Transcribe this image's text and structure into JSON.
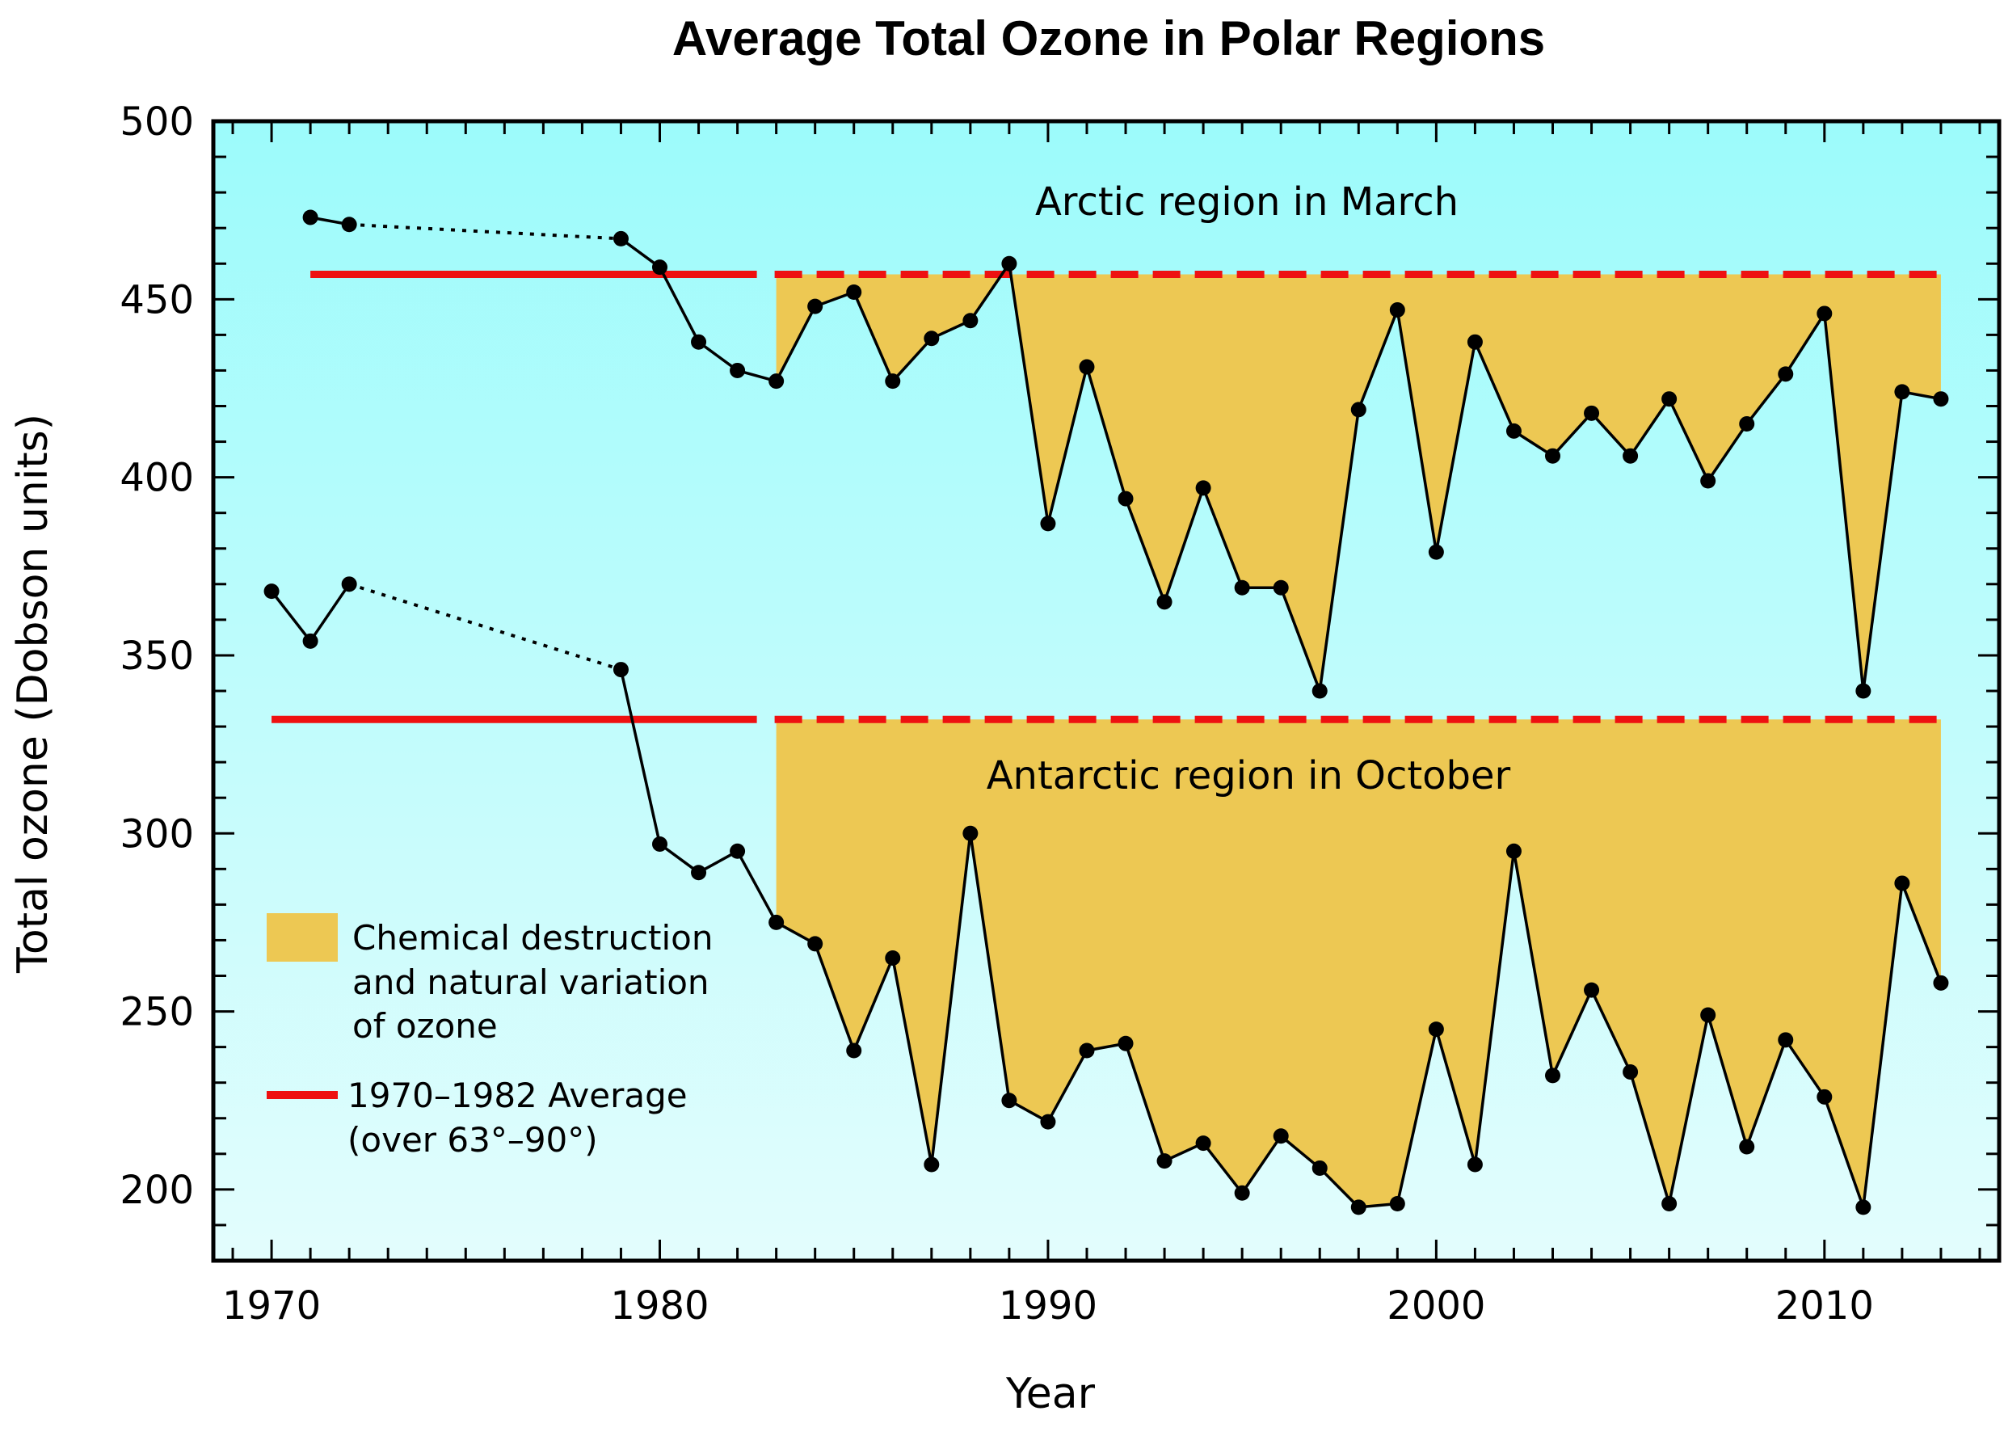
{
  "chart_data": {
    "type": "line",
    "title": "Average Total Ozone in Polar Regions",
    "xlabel": "Year",
    "ylabel": "Total ozone (Dobson units)",
    "xlim": [
      1968.5,
      2014.5
    ],
    "ylim": [
      180,
      500
    ],
    "xticks": [
      1970,
      1980,
      1990,
      2000,
      2010
    ],
    "yticks": [
      200,
      250,
      300,
      350,
      400,
      450,
      500
    ],
    "grid": false,
    "colors": {
      "background_top": "#9cfbfb",
      "background_bottom": "#e3fdfd",
      "fill": "#edc853",
      "average_line": "#ee1111",
      "data": "#000000"
    },
    "series": [
      {
        "name": "Arctic region in March",
        "average": 457,
        "points": [
          [
            1971,
            473
          ],
          [
            1972,
            471
          ],
          [
            1979,
            467
          ],
          [
            1980,
            459
          ],
          [
            1981,
            438
          ],
          [
            1982,
            430
          ],
          [
            1983,
            427
          ],
          [
            1984,
            448
          ],
          [
            1985,
            452
          ],
          [
            1986,
            427
          ],
          [
            1987,
            439
          ],
          [
            1988,
            444
          ],
          [
            1989,
            460
          ],
          [
            1990,
            387
          ],
          [
            1991,
            431
          ],
          [
            1992,
            394
          ],
          [
            1993,
            365
          ],
          [
            1994,
            397
          ],
          [
            1995,
            369
          ],
          [
            1996,
            369
          ],
          [
            1997,
            340
          ],
          [
            1998,
            419
          ],
          [
            1999,
            447
          ],
          [
            2000,
            379
          ],
          [
            2001,
            438
          ],
          [
            2002,
            413
          ],
          [
            2003,
            406
          ],
          [
            2004,
            418
          ],
          [
            2005,
            406
          ],
          [
            2006,
            422
          ],
          [
            2007,
            399
          ],
          [
            2008,
            415
          ],
          [
            2009,
            429
          ],
          [
            2010,
            446
          ],
          [
            2011,
            340
          ],
          [
            2012,
            424
          ],
          [
            2013,
            422
          ]
        ]
      },
      {
        "name": "Antarctic region in October",
        "average": 332,
        "points": [
          [
            1970,
            368
          ],
          [
            1971,
            354
          ],
          [
            1972,
            370
          ],
          [
            1979,
            346
          ],
          [
            1980,
            297
          ],
          [
            1981,
            289
          ],
          [
            1982,
            295
          ],
          [
            1983,
            275
          ],
          [
            1984,
            269
          ],
          [
            1985,
            239
          ],
          [
            1986,
            265
          ],
          [
            1987,
            207
          ],
          [
            1988,
            300
          ],
          [
            1989,
            225
          ],
          [
            1990,
            219
          ],
          [
            1991,
            239
          ],
          [
            1992,
            241
          ],
          [
            1993,
            208
          ],
          [
            1994,
            213
          ],
          [
            1995,
            199
          ],
          [
            1996,
            215
          ],
          [
            1997,
            206
          ],
          [
            1998,
            195
          ],
          [
            1999,
            196
          ],
          [
            2000,
            245
          ],
          [
            2001,
            207
          ],
          [
            2002,
            295
          ],
          [
            2003,
            232
          ],
          [
            2004,
            256
          ],
          [
            2005,
            233
          ],
          [
            2006,
            196
          ],
          [
            2007,
            249
          ],
          [
            2008,
            212
          ],
          [
            2009,
            242
          ],
          [
            2010,
            226
          ],
          [
            2011,
            195
          ],
          [
            2012,
            286
          ],
          [
            2013,
            258
          ]
        ]
      }
    ],
    "legend": {
      "fill_label": [
        "Chemical destruction",
        "and natural variation",
        "of ozone"
      ],
      "line_label": [
        "1970–1982 Average",
        "(over 63°–90°)"
      ]
    }
  }
}
